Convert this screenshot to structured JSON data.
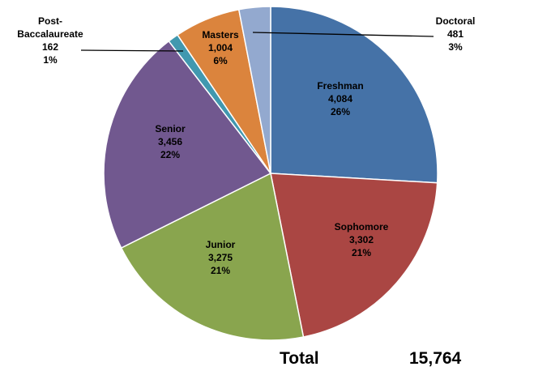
{
  "chart_data": {
    "type": "pie",
    "categories": [
      "Freshman",
      "Sophomore",
      "Junior",
      "Senior",
      "Post-Baccalaureate",
      "Masters",
      "Doctoral"
    ],
    "values": [
      4084,
      3302,
      3275,
      3456,
      162,
      1004,
      481
    ],
    "value_labels": [
      "4,084",
      "3,302",
      "3,275",
      "3,456",
      "162",
      "1,004",
      "481"
    ],
    "percent_labels": [
      "26%",
      "21%",
      "21%",
      "22%",
      "1%",
      "6%",
      "3%"
    ],
    "colors": [
      "#4572a7",
      "#aa4643",
      "#89a54e",
      "#71588f",
      "#4198af",
      "#db843d",
      "#93a9cf"
    ],
    "total_text": "Total",
    "total": 15764,
    "total_label": "15,764"
  }
}
